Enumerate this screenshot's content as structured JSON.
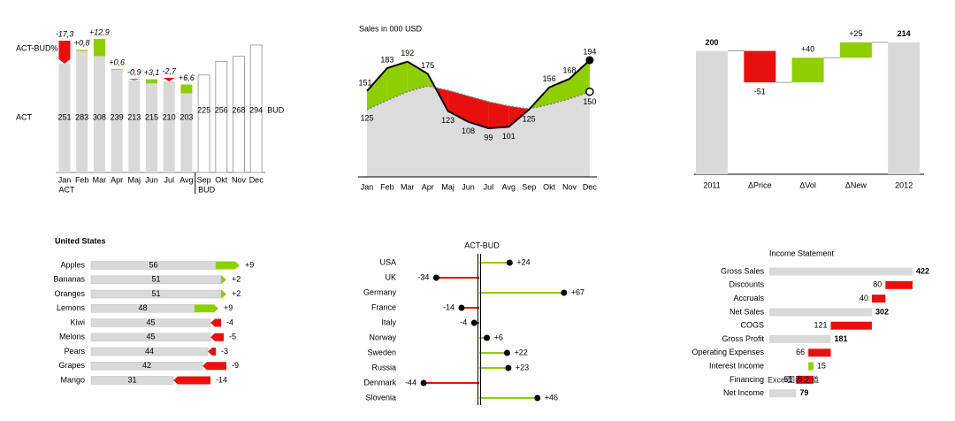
{
  "chart_data": [
    {
      "type": "variance_columns",
      "categories": [
        "Jan",
        "Feb",
        "Mar",
        "Apr",
        "Maj",
        "Jun",
        "Jul",
        "Avg",
        "Sep",
        "Okt",
        "Nov",
        "Dec"
      ],
      "series": [
        {
          "name": "ACT",
          "color": "#d9d9d9",
          "values": [
            251,
            283,
            308,
            239,
            213,
            215,
            210,
            203,
            null,
            null,
            null,
            null
          ]
        },
        {
          "name": "BUD",
          "color": "#ffffff",
          "values": [
            null,
            null,
            null,
            null,
            null,
            null,
            null,
            null,
            225,
            256,
            268,
            294
          ]
        }
      ],
      "variance": {
        "name": "ACT-BUD%",
        "values": [
          -17.3,
          0.8,
          12.9,
          0.6,
          -0.9,
          3.1,
          -2.7,
          6.6
        ],
        "value_labels": [
          "-17,3",
          "+0,8",
          "+12,9",
          "+0,6",
          "-0,9",
          "+3,1",
          "-2,7",
          "+6,6"
        ],
        "colors": {
          "positive": "#8fce00",
          "negative": "#e8100e"
        }
      }
    },
    {
      "type": "line_variance",
      "title": "Sales in 000 USD",
      "categories": [
        "Jan",
        "Feb",
        "Mar",
        "Apr",
        "Maj",
        "Jun",
        "Jul",
        "Avg",
        "Sep",
        "Okt",
        "Nov",
        "Dec"
      ],
      "series": [
        {
          "color": "#000000",
          "values": [
            151,
            183,
            192,
            175,
            123,
            108,
            99,
            101,
            125,
            156,
            168,
            194
          ]
        },
        {
          "color": "#7f7f7f",
          "values": [
            125,
            138,
            150,
            158,
            152,
            144,
            136,
            130,
            126,
            132,
            140,
            150
          ]
        }
      ],
      "colors": {
        "positive": "#8fce00",
        "negative": "#e8100e",
        "area": "#dcdcdc"
      }
    },
    {
      "type": "waterfall",
      "categories": [
        "2011",
        "ΔPrice",
        "ΔVol",
        "ΔNew",
        "2012"
      ],
      "values": [
        200,
        -51,
        40,
        25,
        214
      ],
      "value_labels": [
        "200",
        "-51",
        "+40",
        "+25",
        "214"
      ],
      "kinds": [
        "total",
        "delta",
        "delta",
        "delta",
        "total"
      ],
      "colors": {
        "total": "#d9d9d9",
        "positive": "#8fce00",
        "negative": "#e8100e"
      }
    },
    {
      "type": "bar_variance",
      "title": "United States",
      "categories": [
        "Apples",
        "Bananas",
        "Oranges",
        "Lemons",
        "Kiwi",
        "Melons",
        "Pears",
        "Grapes",
        "Mango"
      ],
      "values": [
        56,
        51,
        51,
        48,
        45,
        45,
        44,
        42,
        31
      ],
      "color": "#d9d9d9",
      "variance": {
        "values": [
          9,
          2,
          2,
          9,
          -4,
          -5,
          -3,
          -9,
          -14
        ],
        "value_labels": [
          "+9",
          "+2",
          "+2",
          "+9",
          "-4",
          "-5",
          "-3",
          "-9",
          "-14"
        ]
      },
      "colors": {
        "positive": "#8fce00",
        "negative": "#e8100e"
      }
    },
    {
      "type": "lollipop",
      "title": "ACT-BUD",
      "categories": [
        "USA",
        "UK",
        "Germany",
        "France",
        "Italy",
        "Norway",
        "Sweden",
        "Russia",
        "Denmark",
        "Slovenia"
      ],
      "values": [
        24,
        -34,
        67,
        -14,
        -4,
        6,
        22,
        23,
        -44,
        46
      ],
      "value_labels": [
        "+24",
        "-34",
        "+67",
        "-14",
        "-4",
        "+6",
        "+22",
        "+23",
        "-44",
        "+46"
      ],
      "colors": {
        "positive": "#8fce00",
        "negative": "#e8100e"
      }
    },
    {
      "type": "waterfall_horizontal",
      "title": "Income Statement",
      "categories": [
        "Gross Sales",
        "Discounts",
        "Accruals",
        "Net Sales",
        "COGS",
        "Gross Profit",
        "Operating Expenses",
        "Interest Income",
        "Financing",
        "Net Income"
      ],
      "values": [
        422,
        80,
        40,
        302,
        121,
        181,
        66,
        15,
        51,
        79
      ],
      "kinds": [
        "total",
        "negative",
        "negative",
        "total",
        "negative",
        "total",
        "negative",
        "positive",
        "negative",
        "total"
      ],
      "colors": {
        "total": "#d9d9d9",
        "positive": "#8fce00",
        "negative": "#e8100e"
      }
    }
  ],
  "watermark": "Excel图表之道"
}
